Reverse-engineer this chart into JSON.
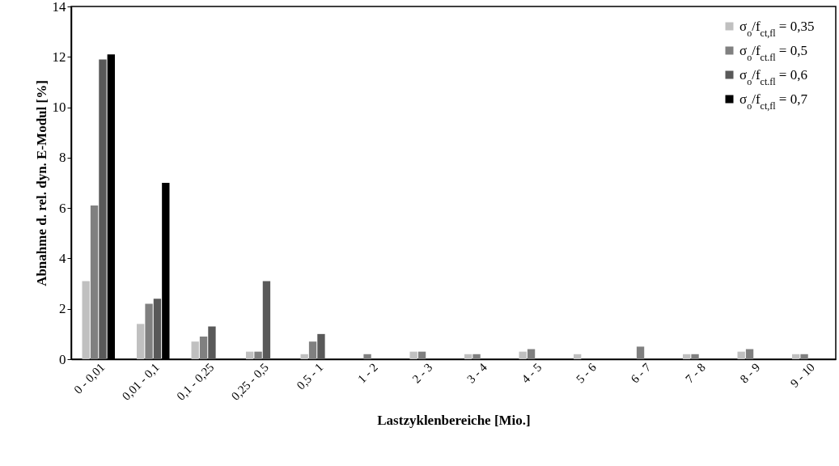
{
  "chart_data": {
    "type": "bar",
    "xlabel": "Lastzyklenbereiche [Mio.]",
    "ylabel": "Abnahme d. rel. dyn. E-Modul [%]",
    "categories": [
      "0 - 0,01",
      "0,01 - 0,1",
      "0,1 - 0,25",
      "0,25 - 0,5",
      "0,5 - 1",
      "1 - 2",
      "2 - 3",
      "3 - 4",
      "4 - 5",
      "5 - 6",
      "6 - 7",
      "7 - 8",
      "8 - 9",
      "9 - 10"
    ],
    "series": [
      {
        "name": "σ$_{o}$/f$_{ct,fl}$ = 0,35",
        "color": "#c0c0c0",
        "values": [
          3.1,
          1.4,
          0.7,
          0.3,
          0.2,
          null,
          0.3,
          0.2,
          0.3,
          0.2,
          null,
          0.2,
          0.3,
          0.2
        ]
      },
      {
        "name": "σ$_{o}$/f$_{ct.fl}$ = 0,5",
        "color": "#808080",
        "values": [
          6.1,
          2.2,
          0.9,
          0.3,
          0.7,
          0.2,
          0.3,
          0.2,
          0.4,
          null,
          0.5,
          0.2,
          0.4,
          0.2
        ]
      },
      {
        "name": "σ$_{o}$/f$_{ct.fl}$ = 0,6",
        "color": "#595959",
        "values": [
          11.9,
          2.4,
          1.3,
          3.1,
          1.0,
          null,
          null,
          null,
          null,
          null,
          null,
          null,
          null,
          null
        ]
      },
      {
        "name": "σ$_{o}$/f$_{ct,fl}$ = 0,7",
        "color": "#000000",
        "values": [
          12.1,
          7.0,
          null,
          null,
          null,
          null,
          null,
          null,
          null,
          null,
          null,
          null,
          null,
          null
        ]
      }
    ],
    "ylim": [
      0,
      14
    ],
    "yticks": [
      0,
      2,
      4,
      6,
      8,
      10,
      12,
      14
    ],
    "grid": false,
    "legend": "top right"
  }
}
